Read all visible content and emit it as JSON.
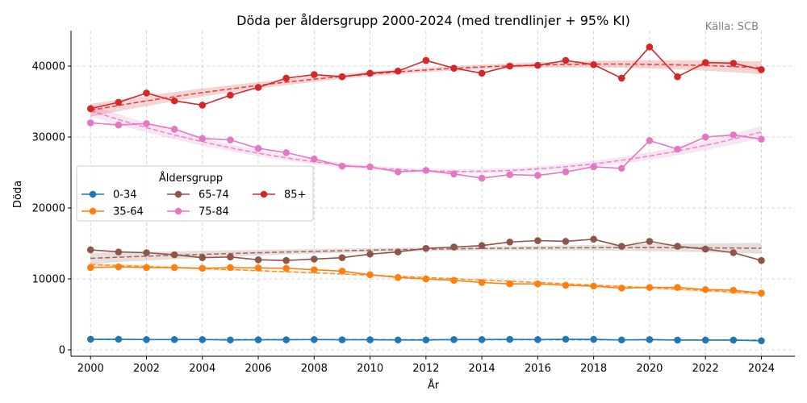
{
  "chart_data": {
    "type": "line",
    "title": "Döda per åldersgrupp 2000-2024 (med trendlinjer + 95% KI)",
    "source_note": "Källa: SCB",
    "xlabel": "År",
    "ylabel": "Döda",
    "xlim": [
      1999.3,
      2025.2
    ],
    "ylim": [
      -900,
      45000
    ],
    "x_ticks": [
      2000,
      2002,
      2004,
      2006,
      2008,
      2010,
      2012,
      2014,
      2016,
      2018,
      2020,
      2022,
      2024
    ],
    "y_ticks": [
      0,
      10000,
      20000,
      30000,
      40000
    ],
    "grid": true,
    "legend": {
      "title": "Åldersgrupp",
      "placement": "center-left",
      "columns": 3
    },
    "x": [
      2000,
      2001,
      2002,
      2003,
      2004,
      2005,
      2006,
      2007,
      2008,
      2009,
      2010,
      2011,
      2012,
      2013,
      2014,
      2015,
      2016,
      2017,
      2018,
      2019,
      2020,
      2021,
      2022,
      2023,
      2024
    ],
    "series": [
      {
        "name": "0-34",
        "color": "#1f77b4",
        "values": [
          1500,
          1500,
          1450,
          1450,
          1450,
          1400,
          1420,
          1420,
          1450,
          1420,
          1420,
          1400,
          1400,
          1450,
          1450,
          1480,
          1450,
          1500,
          1480,
          1400,
          1450,
          1380,
          1380,
          1380,
          1280
        ]
      },
      {
        "name": "35-64",
        "color": "#ff7f0e",
        "values": [
          11600,
          11700,
          11600,
          11600,
          11500,
          11600,
          11550,
          11500,
          11300,
          11100,
          10600,
          10200,
          10000,
          9800,
          9500,
          9300,
          9300,
          9100,
          9000,
          8700,
          8800,
          8800,
          8500,
          8400,
          8000
        ]
      },
      {
        "name": "65-74",
        "color": "#8c564b",
        "values": [
          14100,
          13800,
          13700,
          13400,
          13000,
          13100,
          12700,
          12600,
          12800,
          13000,
          13500,
          13800,
          14300,
          14500,
          14700,
          15200,
          15400,
          15300,
          15600,
          14600,
          15300,
          14600,
          14200,
          13700,
          12600
        ]
      },
      {
        "name": "75-84",
        "color": "#e377c2",
        "values": [
          32000,
          31700,
          31900,
          31100,
          29800,
          29600,
          28400,
          27800,
          26900,
          25900,
          25800,
          25100,
          25300,
          24800,
          24200,
          24700,
          24600,
          25100,
          25800,
          25600,
          29500,
          28300,
          30000,
          30300,
          29700
        ]
      },
      {
        "name": "85+",
        "color": "#d62728",
        "values": [
          34000,
          34900,
          36200,
          35100,
          34500,
          35900,
          37000,
          38300,
          38800,
          38500,
          39000,
          39300,
          40800,
          39700,
          39000,
          40000,
          40100,
          40800,
          40200,
          38300,
          42700,
          38500,
          40500,
          40400,
          39500
        ]
      }
    ]
  }
}
